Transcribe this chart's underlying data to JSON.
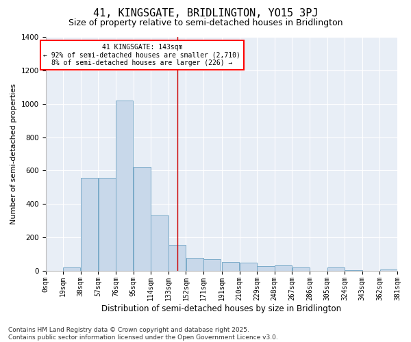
{
  "title": "41, KINGSGATE, BRIDLINGTON, YO15 3PJ",
  "subtitle": "Size of property relative to semi-detached houses in Bridlington",
  "xlabel": "Distribution of semi-detached houses by size in Bridlington",
  "ylabel": "Number of semi-detached properties",
  "bar_color": "#c8d8ea",
  "bar_edge_color": "#7aaac8",
  "background_color": "#e8eef6",
  "annotation_text": "41 KINGSGATE: 143sqm\n← 92% of semi-detached houses are smaller (2,710)\n8% of semi-detached houses are larger (226) →",
  "vline_color": "#cc0000",
  "bins": [
    0,
    19,
    38,
    57,
    76,
    95,
    114,
    133,
    152,
    171,
    191,
    210,
    229,
    248,
    267,
    286,
    305,
    324,
    343,
    362,
    381
  ],
  "counts": [
    0,
    22,
    557,
    557,
    1018,
    622,
    332,
    155,
    80,
    70,
    55,
    50,
    30,
    32,
    20,
    0,
    20,
    5,
    0,
    10
  ],
  "tick_labels": [
    "0sqm",
    "19sqm",
    "38sqm",
    "57sqm",
    "76sqm",
    "95sqm",
    "114sqm",
    "133sqm",
    "152sqm",
    "171sqm",
    "191sqm",
    "210sqm",
    "229sqm",
    "248sqm",
    "267sqm",
    "286sqm",
    "305sqm",
    "324sqm",
    "343sqm",
    "362sqm",
    "381sqm"
  ],
  "ylim": [
    0,
    1400
  ],
  "vline_xval": 143,
  "footnote": "Contains HM Land Registry data © Crown copyright and database right 2025.\nContains public sector information licensed under the Open Government Licence v3.0.",
  "title_fontsize": 11,
  "subtitle_fontsize": 9,
  "xlabel_fontsize": 8.5,
  "ylabel_fontsize": 8,
  "tick_fontsize": 7,
  "footnote_fontsize": 6.5
}
